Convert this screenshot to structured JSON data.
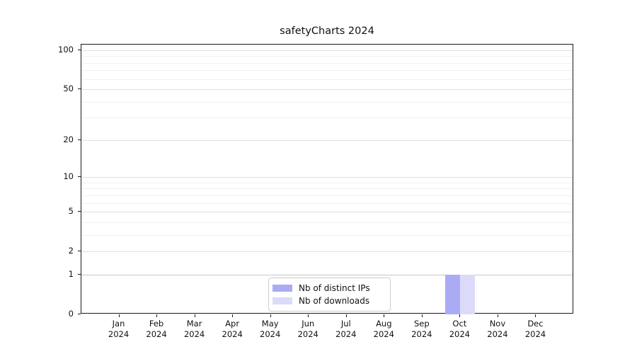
{
  "title": "safetyCharts 2024",
  "chart_data": {
    "type": "bar",
    "title": "safetyCharts 2024",
    "categories": [
      "Jan 2024",
      "Feb 2024",
      "Mar 2024",
      "Apr 2024",
      "May 2024",
      "Jun 2024",
      "Jul 2024",
      "Aug 2024",
      "Sep 2024",
      "Oct 2024",
      "Nov 2024",
      "Dec 2024"
    ],
    "months": [
      "Jan",
      "Feb",
      "Mar",
      "Apr",
      "May",
      "Jun",
      "Jul",
      "Aug",
      "Sep",
      "Oct",
      "Nov",
      "Dec"
    ],
    "year": "2024",
    "series": [
      {
        "name": "Nb of distinct IPs",
        "color": "#ababf5",
        "values": [
          0,
          0,
          0,
          0,
          0,
          0,
          0,
          0,
          0,
          1,
          0,
          0
        ]
      },
      {
        "name": "Nb of downloads",
        "color": "#dbdbf9",
        "values": [
          0,
          0,
          0,
          0,
          0,
          0,
          0,
          0,
          0,
          1,
          0,
          0
        ]
      }
    ],
    "yscale": "log1p",
    "ylabel": "",
    "xlabel": "",
    "ylim": [
      0,
      112
    ],
    "y_major_ticks": [
      0,
      1,
      2,
      5,
      10,
      20,
      50,
      100
    ],
    "y_minor_ticks": [
      3,
      4,
      6,
      7,
      8,
      9,
      30,
      40,
      60,
      70,
      80,
      90
    ],
    "grid": "horizontal",
    "legend_position": "lower center"
  },
  "legend": {
    "items": [
      {
        "label": "Nb of distinct IPs",
        "color": "#ababf5"
      },
      {
        "label": "Nb of downloads",
        "color": "#dbdbf9"
      }
    ]
  },
  "colors": {
    "background": "#ffffff",
    "axis": "#1a1a1a",
    "gridline_major": "#e0e0e0",
    "gridline_minor": "#f0f0f0",
    "gridline_baseline_one": "#c8c8c8",
    "bar_distinct_ips": "#ababf5",
    "bar_downloads": "#dbdbf9"
  }
}
